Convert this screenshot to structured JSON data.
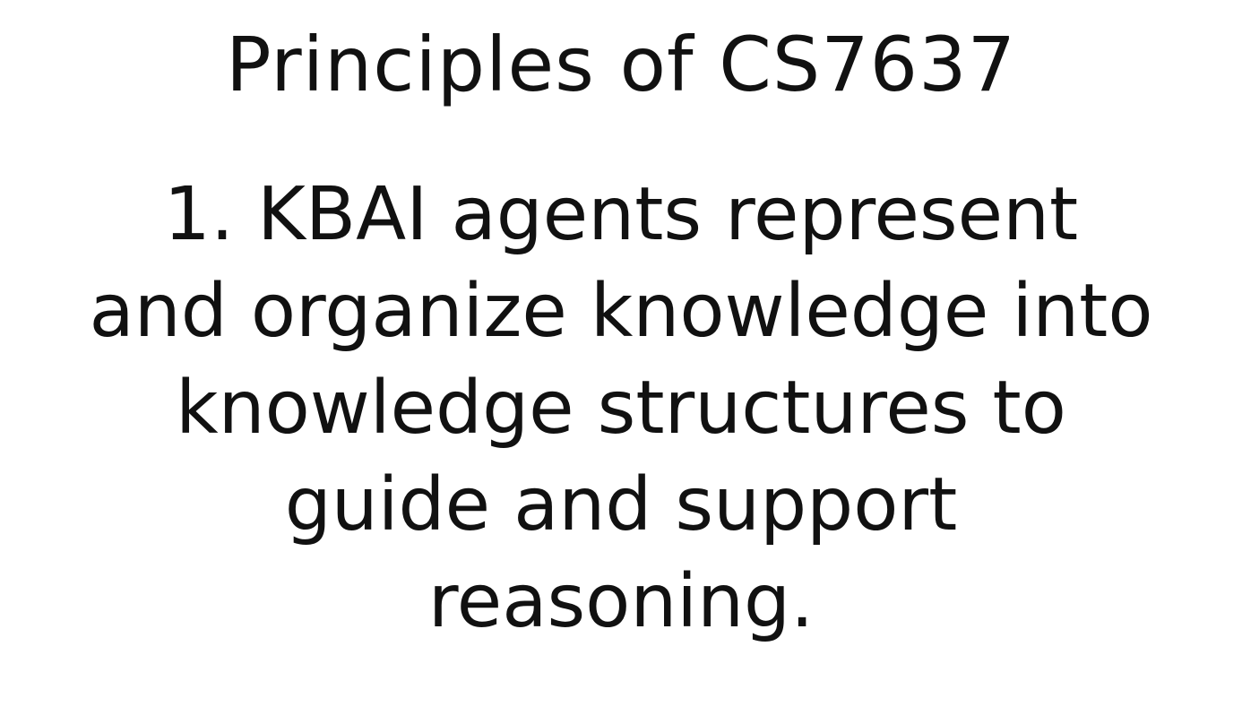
{
  "slide": {
    "title": "Principles of CS7637",
    "principle_lines": [
      "1. KBAI agents represent",
      "and organize knowledge into",
      "knowledge structures to",
      "guide and support",
      "reasoning."
    ]
  },
  "colors": {
    "background": "#ffffff",
    "text": "#111111"
  }
}
